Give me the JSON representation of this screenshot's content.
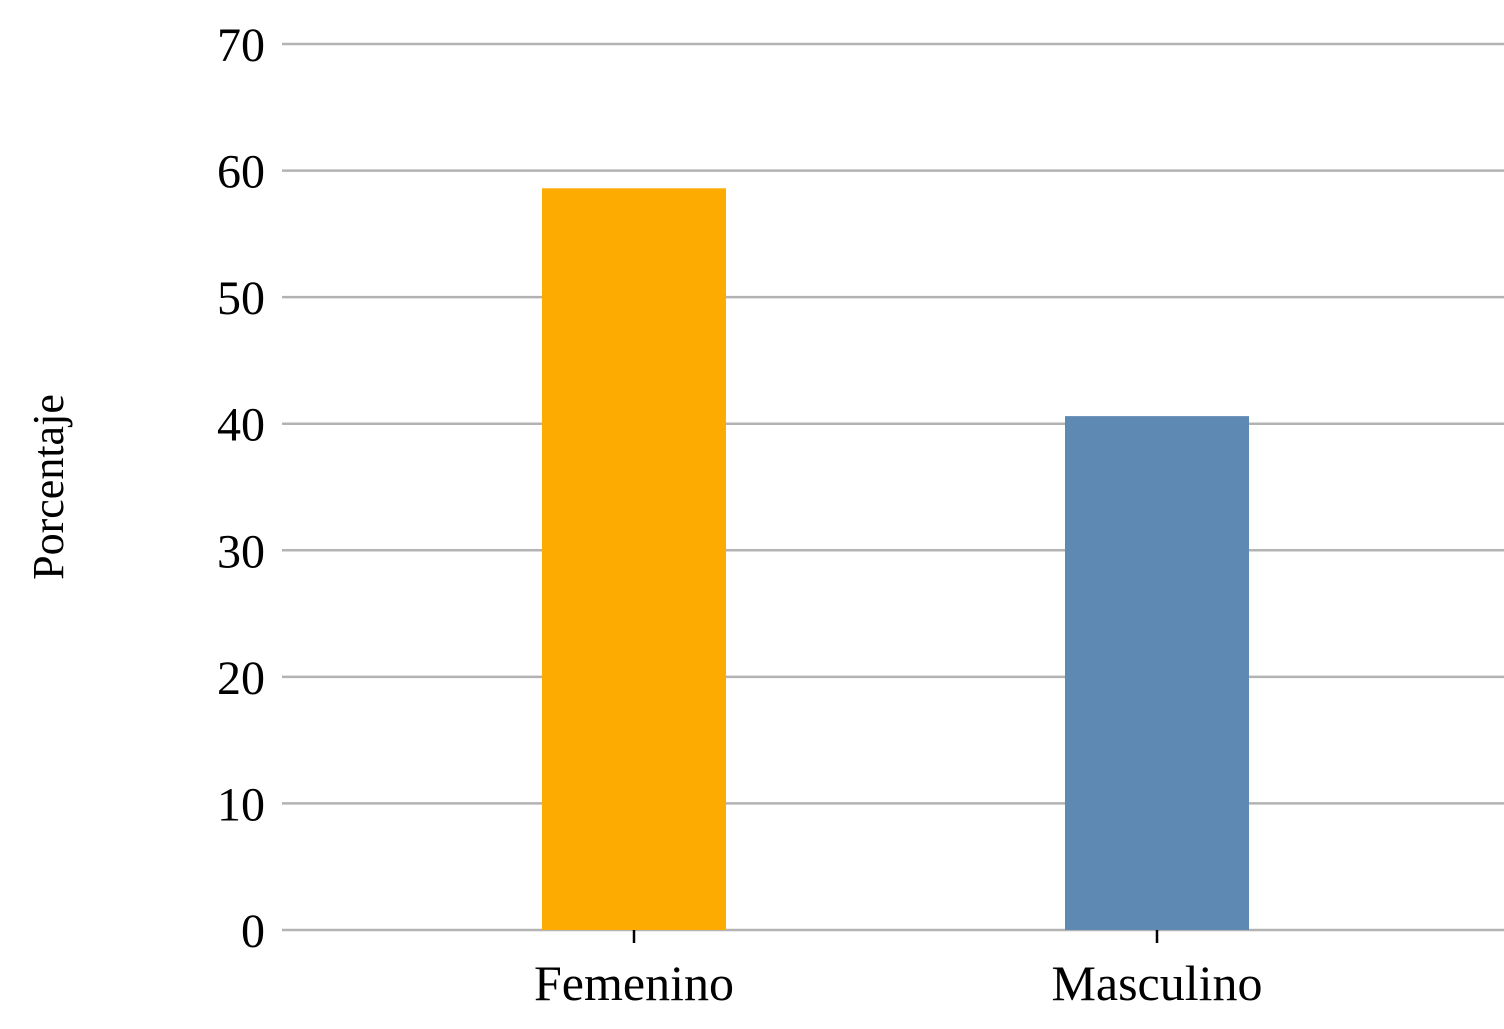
{
  "colors": {
    "background": "#ffffff",
    "gridline": "#b3b3b3",
    "text": "#000000",
    "bar_femenino": "#fdab00",
    "bar_masculino": "#5d89b3"
  },
  "chart_data": {
    "type": "bar",
    "title": "",
    "xlabel": "",
    "ylabel": "Porcentaje",
    "categories": [
      "Femenino",
      "Masculino"
    ],
    "values": [
      58.6,
      40.6
    ],
    "bar_colors": [
      "#fdab00",
      "#5d89b3"
    ],
    "ylim": [
      0,
      70
    ],
    "yticks": [
      0,
      10,
      20,
      30,
      40,
      50,
      60,
      70
    ],
    "grid": true,
    "legend": "none"
  }
}
